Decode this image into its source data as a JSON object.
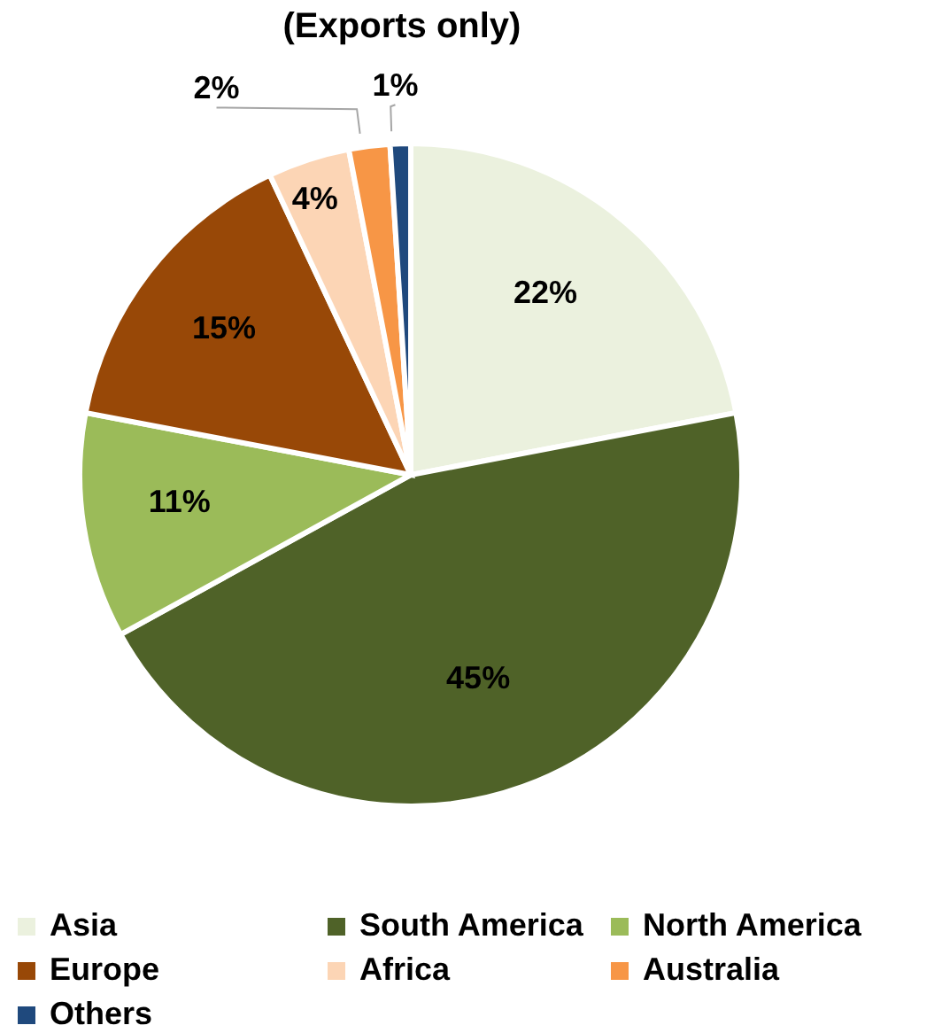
{
  "chart_data": {
    "type": "pie",
    "title": "(Exports only)",
    "categories": [
      "Asia",
      "South America",
      "North America",
      "Europe",
      "Africa",
      "Australia",
      "Others"
    ],
    "values": [
      22,
      45,
      11,
      15,
      4,
      2,
      1
    ],
    "colors": [
      "#ebf1de",
      "#4f6228",
      "#9bbb59",
      "#984807",
      "#fcd5b5",
      "#f79646",
      "#1f497d"
    ],
    "value_labels": [
      "22%",
      "45%",
      "11%",
      "15%",
      "4%",
      "2%",
      "1%"
    ],
    "legend": "bottom"
  }
}
